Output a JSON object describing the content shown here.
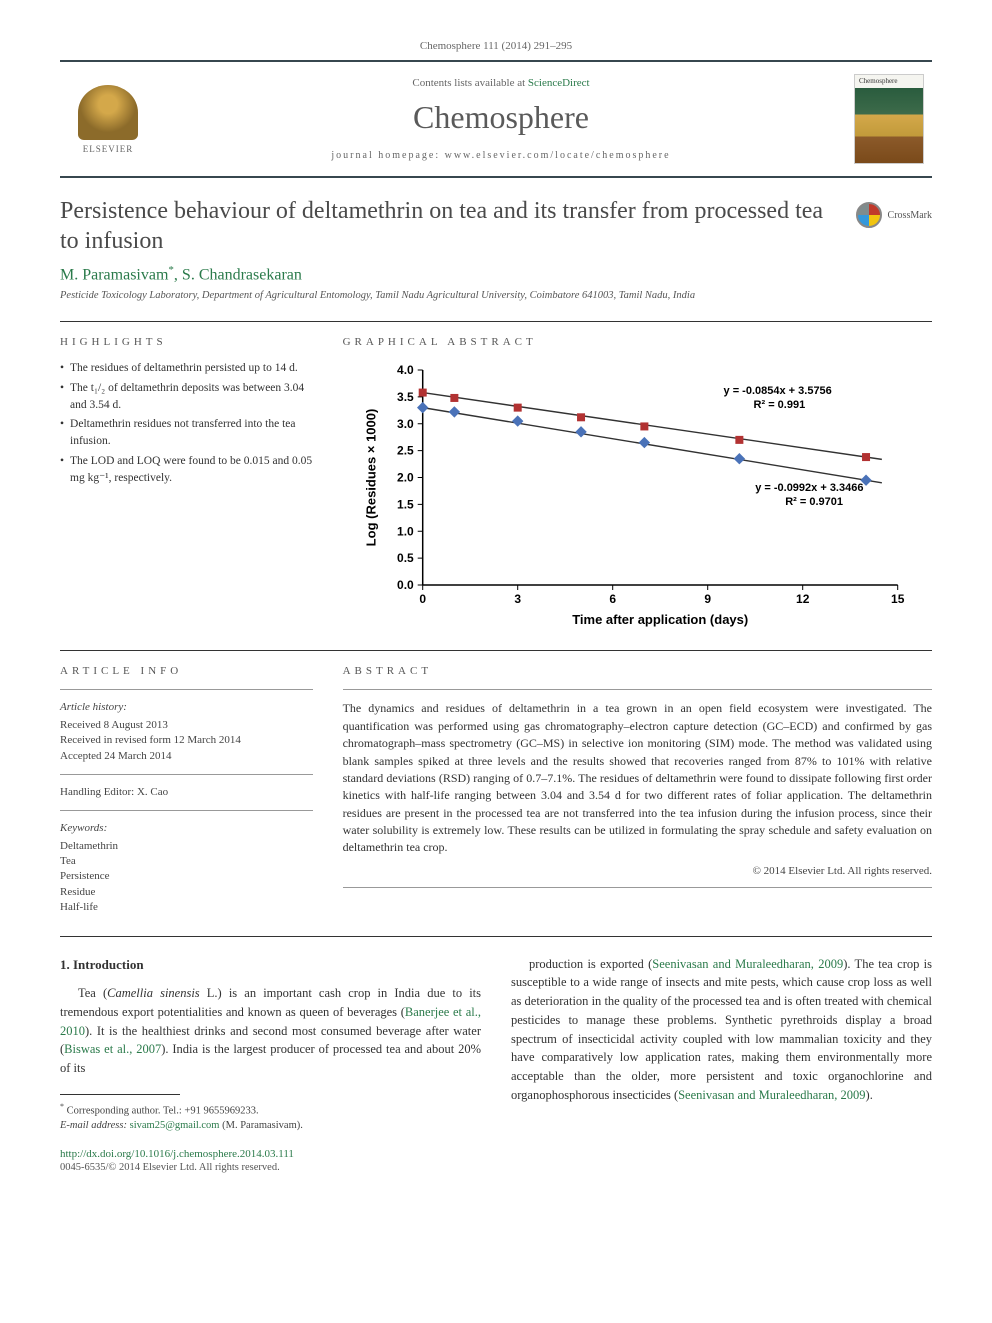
{
  "citation": "Chemosphere 111 (2014) 291–295",
  "header": {
    "contents_line_pre": "Contents lists available at ",
    "contents_link": "ScienceDirect",
    "journal_name": "Chemosphere",
    "homepage_pre": "journal homepage: ",
    "homepage_url": "www.elsevier.com/locate/chemosphere",
    "publisher": "ELSEVIER",
    "cover_label": "Chemosphere"
  },
  "crossmark_label": "CrossMark",
  "title": "Persistence behaviour of deltamethrin on tea and its transfer from processed tea to infusion",
  "authors_html": "M. Paramasivam",
  "author_marker": "*",
  "author2": ", S. Chandrasekaran",
  "affiliation": "Pesticide Toxicology Laboratory, Department of Agricultural Entomology, Tamil Nadu Agricultural University, Coimbatore 641003, Tamil Nadu, India",
  "sections": {
    "highlights_label": "HIGHLIGHTS",
    "graphical_label": "GRAPHICAL ABSTRACT",
    "article_info_label": "ARTICLE INFO",
    "abstract_label": "ABSTRACT"
  },
  "highlights": [
    "The residues of deltamethrin persisted up to 14 d.",
    "The t₁/₂ of deltamethrin deposits was between 3.04 and 3.54 d.",
    "Deltamethrin residues not transferred into the tea infusion.",
    "The LOD and LOQ were found to be 0.015 and 0.05 mg kg⁻¹, respectively."
  ],
  "chart": {
    "type": "scatter-line",
    "xlabel": "Time after application (days)",
    "ylabel": "Log (Residues × 1000)",
    "xlim": [
      0,
      15
    ],
    "ylim": [
      0.0,
      4.0
    ],
    "xticks": [
      0,
      3,
      6,
      9,
      12,
      15
    ],
    "yticks": [
      0.0,
      0.5,
      1.0,
      1.5,
      2.0,
      2.5,
      3.0,
      3.5,
      4.0
    ],
    "label_fontsize": 13,
    "tick_fontsize": 12,
    "annotation_fontsize": 11,
    "grid": false,
    "background_color": "#ffffff",
    "axis_color": "#000000",
    "marker_size": 8,
    "series": [
      {
        "name": "series-red",
        "marker": "square",
        "color": "#b23232",
        "line_color": "#323232",
        "line_width": 1.4,
        "x": [
          0,
          1,
          3,
          5,
          7,
          10,
          14
        ],
        "y": [
          3.58,
          3.48,
          3.3,
          3.12,
          2.95,
          2.7,
          2.38
        ],
        "equation": "y = -0.0854x + 3.5756",
        "r2": "R² = 0.991",
        "ann_x": 9.5,
        "ann_y": 3.55
      },
      {
        "name": "series-blue",
        "marker": "diamond",
        "color": "#4a72b8",
        "line_color": "#323232",
        "line_width": 1.4,
        "x": [
          0,
          1,
          3,
          5,
          7,
          10,
          14
        ],
        "y": [
          3.3,
          3.22,
          3.05,
          2.85,
          2.65,
          2.35,
          1.95
        ],
        "equation": "y = -0.0992x + 3.3466",
        "r2": "R² = 0.9701",
        "ann_x": 10.5,
        "ann_y": 1.75
      }
    ]
  },
  "article_info": {
    "history_heading": "Article history:",
    "received": "Received 8 August 2013",
    "revised": "Received in revised form 12 March 2014",
    "accepted": "Accepted 24 March 2014",
    "editor": "Handling Editor: X. Cao",
    "keywords_heading": "Keywords:",
    "keywords": [
      "Deltamethrin",
      "Tea",
      "Persistence",
      "Residue",
      "Half-life"
    ]
  },
  "abstract": "The dynamics and residues of deltamethrin in a tea grown in an open field ecosystem were investigated. The quantification was performed using gas chromatography–electron capture detection (GC–ECD) and confirmed by gas chromatograph–mass spectrometry (GC–MS) in selective ion monitoring (SIM) mode. The method was validated using blank samples spiked at three levels and the results showed that recoveries ranged from 87% to 101% with relative standard deviations (RSD) ranging of 0.7–7.1%. The residues of deltamethrin were found to dissipate following first order kinetics with half-life ranging between 3.04 and 3.54 d for two different rates of foliar application. The deltamethrin residues are present in the processed tea are not transferred into the tea infusion during the infusion process, since their water solubility is extremely low. These results can be utilized in formulating the spray schedule and safety evaluation on deltamethrin tea crop.",
  "copyright": "© 2014 Elsevier Ltd. All rights reserved.",
  "body": {
    "intro_heading": "1. Introduction",
    "left_para": "Tea (Camellia sinensis L.) is an important cash crop in India due to its tremendous export potentialities and known as queen of beverages (Banerjee et al., 2010). It is the healthiest drinks and second most consumed beverage after water (Biswas et al., 2007). India is the largest producer of processed tea and about 20% of its",
    "left_ref1": "Banerjee et al., 2010",
    "left_ref2": "Biswas et al., 2007",
    "right_para": "production is exported (Seenivasan and Muraleedharan, 2009). The tea crop is susceptible to a wide range of insects and mite pests, which cause crop loss as well as deterioration in the quality of the processed tea and is often treated with chemical pesticides to manage these problems. Synthetic pyrethroids display a broad spectrum of insecticidal activity coupled with low mammalian toxicity and they have comparatively low application rates, making them environmentally more acceptable than the older, more persistent and toxic organochlorine and organophosphorous insecticides (Seenivasan and Muraleedharan, 2009).",
    "right_ref1": "Seenivasan and Muraleedharan, 2009",
    "right_ref2": "Seenivasan and Muraleedharan, 2009"
  },
  "footnote": {
    "corr": "Corresponding author. Tel.: +91 9655969233.",
    "email_label": "E-mail address:",
    "email": "sivam25@gmail.com",
    "email_person": "(M. Paramasivam)."
  },
  "doi": {
    "url": "http://dx.doi.org/10.1016/j.chemosphere.2014.03.111",
    "issn": "0045-6535/© 2014 Elsevier Ltd. All rights reserved."
  },
  "colors": {
    "link": "#2a7a4a",
    "text": "#323232",
    "rule": "#37474f"
  }
}
